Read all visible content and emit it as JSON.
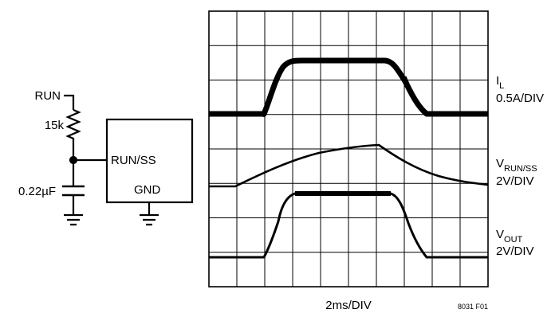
{
  "circuit": {
    "run_label": "RUN",
    "resistor_label": "15k",
    "capacitor_label": "0.22µF",
    "pin_run_ss": "RUN/SS",
    "pin_gnd": "GND"
  },
  "scope": {
    "x_scale": "2ms/DIV",
    "figure_id": "8031 F01",
    "traces": [
      {
        "name_main": "I",
        "name_sub": "L",
        "scale": "0.5A/DIV"
      },
      {
        "name_main": "V",
        "name_sub": "RUN/SS",
        "scale": "2V/DIV"
      },
      {
        "name_main": "V",
        "name_sub": "OUT",
        "scale": "2V/DIV"
      }
    ]
  },
  "colors": {
    "ink": "#000000",
    "grid": "#000000",
    "background": "#ffffff"
  }
}
